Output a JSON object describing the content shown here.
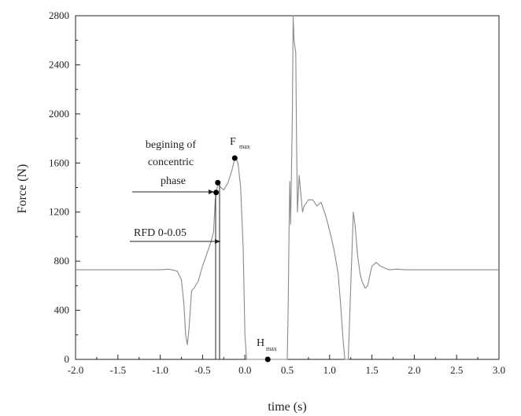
{
  "chart_data": {
    "type": "line",
    "xlabel": "time (s)",
    "ylabel": "Force (N)",
    "xlim": [
      -2.0,
      3.0
    ],
    "ylim": [
      0,
      2800
    ],
    "x_ticks": [
      "-2.0",
      "-1.5",
      "-1.0",
      "-0.5",
      "0.0",
      "0.5",
      "1.0",
      "1.5",
      "2.0",
      "2.5",
      "3.0"
    ],
    "y_ticks": [
      "0",
      "400",
      "800",
      "1200",
      "1600",
      "2000",
      "2400",
      "2800"
    ],
    "series": [
      {
        "color": "#8a8a8a",
        "points": [
          [
            -2.0,
            730
          ],
          [
            -1.5,
            730
          ],
          [
            -1.0,
            730
          ],
          [
            -0.9,
            735
          ],
          [
            -0.8,
            720
          ],
          [
            -0.75,
            650
          ],
          [
            -0.72,
            450
          ],
          [
            -0.7,
            200
          ],
          [
            -0.68,
            120
          ],
          [
            -0.66,
            250
          ],
          [
            -0.63,
            560
          ],
          [
            -0.6,
            580
          ],
          [
            -0.55,
            640
          ],
          [
            -0.5,
            760
          ],
          [
            -0.45,
            860
          ],
          [
            -0.4,
            960
          ],
          [
            -0.37,
            1040
          ],
          [
            -0.35,
            1300
          ],
          [
            -0.34,
            1360
          ],
          [
            -0.33,
            1390
          ],
          [
            -0.32,
            1440
          ],
          [
            -0.3,
            1410
          ],
          [
            -0.25,
            1380
          ],
          [
            -0.2,
            1440
          ],
          [
            -0.15,
            1550
          ],
          [
            -0.12,
            1640
          ],
          [
            -0.1,
            1630
          ],
          [
            -0.08,
            1590
          ],
          [
            -0.05,
            1400
          ],
          [
            -0.02,
            900
          ],
          [
            0.0,
            200
          ],
          [
            0.02,
            0
          ],
          [
            0.3,
            0
          ],
          [
            0.5,
            0
          ],
          [
            0.51,
            400
          ],
          [
            0.52,
            1000
          ],
          [
            0.53,
            1450
          ],
          [
            0.54,
            1100
          ],
          [
            0.56,
            2000
          ],
          [
            0.57,
            2800
          ],
          [
            0.58,
            2600
          ],
          [
            0.6,
            2500
          ],
          [
            0.61,
            1800
          ],
          [
            0.62,
            1200
          ],
          [
            0.64,
            1500
          ],
          [
            0.66,
            1350
          ],
          [
            0.68,
            1200
          ],
          [
            0.7,
            1250
          ],
          [
            0.75,
            1300
          ],
          [
            0.8,
            1300
          ],
          [
            0.85,
            1250
          ],
          [
            0.9,
            1280
          ],
          [
            0.95,
            1180
          ],
          [
            1.0,
            1050
          ],
          [
            1.05,
            900
          ],
          [
            1.1,
            700
          ],
          [
            1.13,
            450
          ],
          [
            1.16,
            150
          ],
          [
            1.18,
            0
          ],
          [
            1.22,
            0
          ],
          [
            1.25,
            600
          ],
          [
            1.27,
            1000
          ],
          [
            1.28,
            1200
          ],
          [
            1.3,
            1100
          ],
          [
            1.33,
            850
          ],
          [
            1.36,
            700
          ],
          [
            1.38,
            640
          ],
          [
            1.42,
            580
          ],
          [
            1.45,
            600
          ],
          [
            1.48,
            700
          ],
          [
            1.5,
            760
          ],
          [
            1.55,
            790
          ],
          [
            1.6,
            760
          ],
          [
            1.7,
            730
          ],
          [
            1.8,
            735
          ],
          [
            1.9,
            730
          ],
          [
            2.0,
            730
          ],
          [
            2.5,
            730
          ],
          [
            3.0,
            730
          ]
        ]
      }
    ],
    "markers": [
      [
        -0.34,
        1360
      ],
      [
        -0.32,
        1440
      ],
      [
        -0.12,
        1640
      ],
      [
        0.27,
        0
      ]
    ],
    "annotations": {
      "begin_line1": "begining of",
      "begin_line2": "concentric",
      "begin_line3": "phase",
      "rfd": "RFD 0-0.05",
      "fmax_main": "F",
      "fmax_sub": "max",
      "hmax_main": "H",
      "hmax_sub": "max"
    },
    "grid": false,
    "legend": "none"
  }
}
